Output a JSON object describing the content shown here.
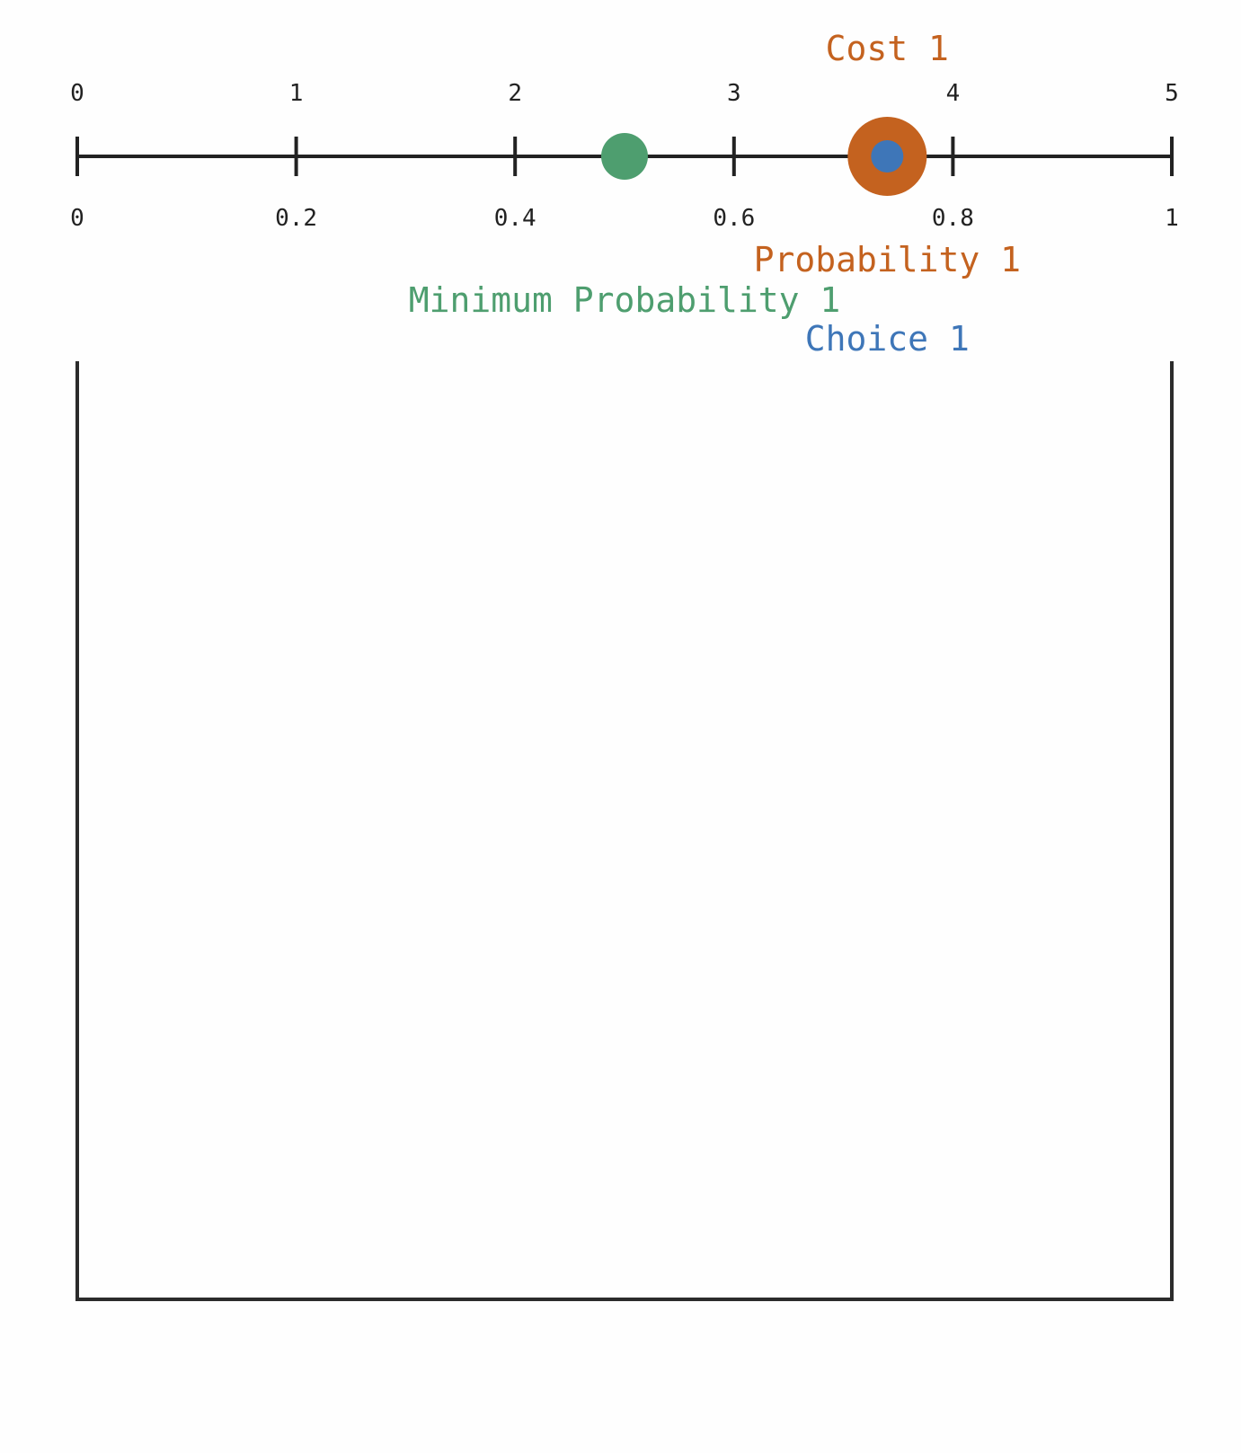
{
  "slider": {
    "top_ticks": [
      "0",
      "1",
      "2",
      "3",
      "4",
      "5"
    ],
    "bottom_ticks": [
      "0",
      "0.2",
      "0.4",
      "0.6",
      "0.8",
      "1"
    ],
    "top_range": [
      0,
      5
    ],
    "bottom_range": [
      0,
      1
    ]
  },
  "markers": {
    "cost": {
      "label": "Cost 1",
      "value": 3.7,
      "color": "#c4621f"
    },
    "probability": {
      "label": "Probability 1",
      "value": 0.74,
      "color": "#c4621f"
    },
    "minimum_probability": {
      "label": "Minimum Probability 1",
      "value": 0.5,
      "color": "#4e9e6f"
    },
    "choice": {
      "label": "Choice 1",
      "value": 0.74,
      "color": "#3e76b8"
    }
  },
  "colors": {
    "axis": "#222222",
    "box": "#2b2b2b",
    "background": "#fefefe"
  }
}
